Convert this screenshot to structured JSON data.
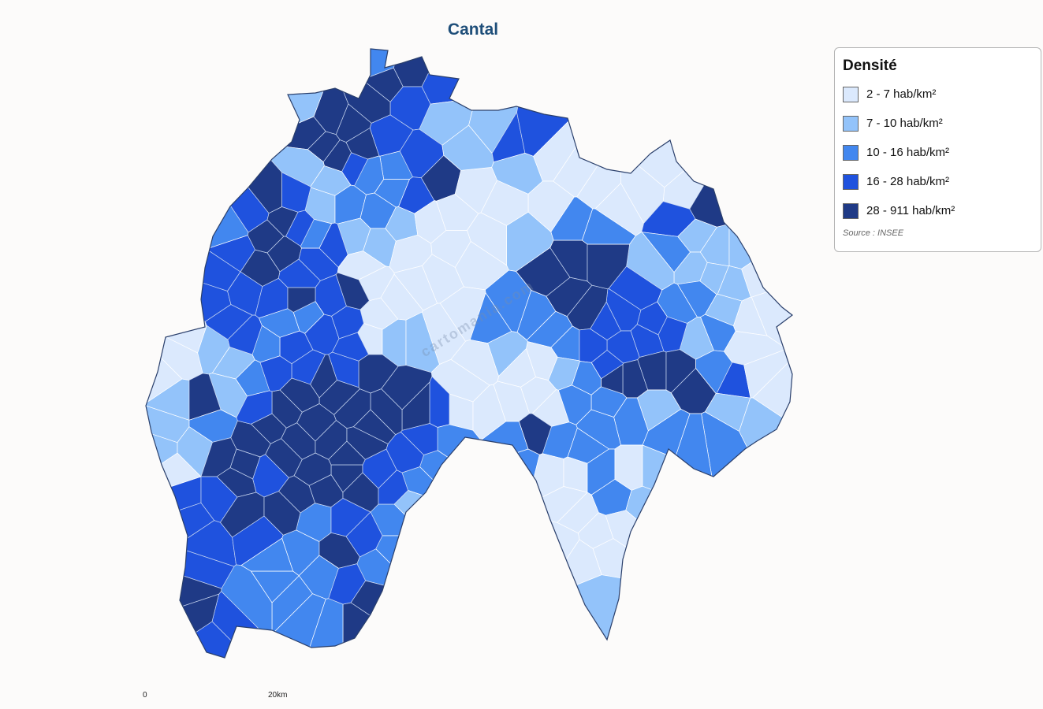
{
  "map": {
    "title": "Cantal",
    "watermark": "cartomania.com",
    "legend": {
      "title": "Densité",
      "classes": [
        {
          "label": "2 - 7 hab/km²",
          "color": "#dbe9fd"
        },
        {
          "label": "7 - 10 hab/km²",
          "color": "#93c3fa"
        },
        {
          "label": "10 - 16 hab/km²",
          "color": "#4287ef"
        },
        {
          "label": "16 - 28 hab/km²",
          "color": "#1f52de"
        },
        {
          "label": "28 - 911 hab/km²",
          "color": "#1f3a86"
        }
      ],
      "source": "Source : INSEE"
    },
    "scale": {
      "start": "0",
      "end": "20km"
    },
    "stroke_color": "#2a3f6b",
    "background": "#fcfbfa"
  }
}
